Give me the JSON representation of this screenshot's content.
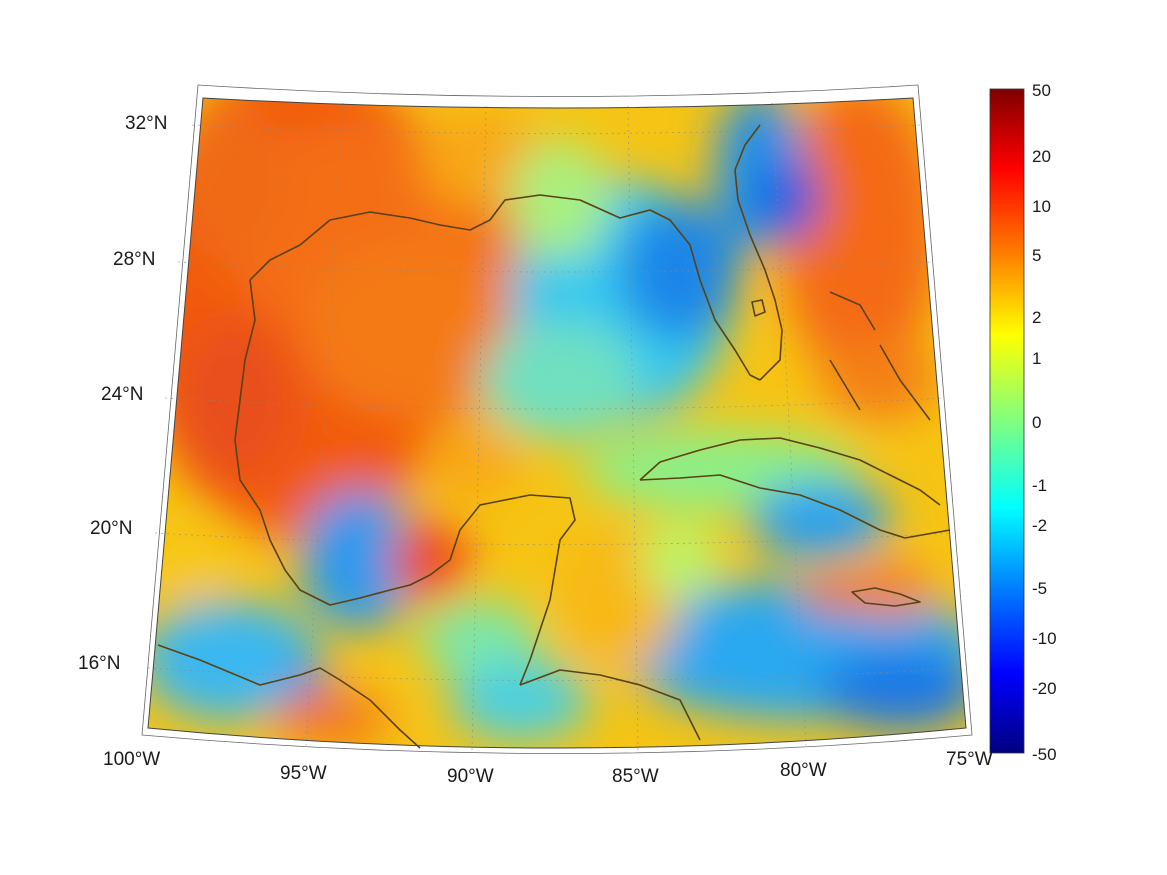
{
  "map": {
    "lat_labels": [
      "32°N",
      "28°N",
      "24°N",
      "20°N",
      "16°N"
    ],
    "lon_labels": [
      "100°W",
      "95°W",
      "90°W",
      "85°W",
      "80°W",
      "75°W"
    ],
    "extent": {
      "lon_min": -100,
      "lon_max": -75,
      "lat_min": 14,
      "lat_max": 33
    },
    "grid": true,
    "colormap": "jet",
    "coastline_color": "#5a4214"
  },
  "colorbar": {
    "ticks": [
      "50",
      "20",
      "10",
      "5",
      "2",
      "1",
      "0",
      "-1",
      "-2",
      "-5",
      "-10",
      "-20",
      "-50"
    ]
  }
}
